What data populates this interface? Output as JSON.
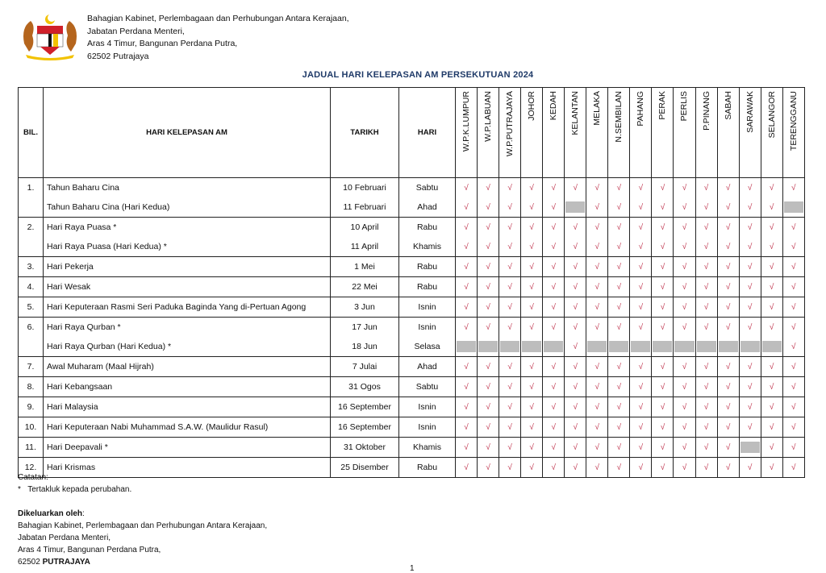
{
  "header": {
    "address": [
      "Bahagian Kabinet, Perlembagaan dan Perhubungan Antara Kerajaan,",
      "Jabatan Perdana Menteri,",
      "Aras 4 Timur, Bangunan Perdana Putra,",
      "62502 Putrajaya"
    ]
  },
  "title": "JADUAL HARI KELEPASAN AM PERSEKUTUAN 2024",
  "columns": {
    "bil": "BIL.",
    "name": "HARI KELEPASAN AM",
    "date": "TARIKH",
    "day": "HARI",
    "states": [
      "W.P.K.LUMPUR",
      "W.P.LABUAN",
      "W.P.PUTRAJAYA",
      "JOHOR",
      "KEDAH",
      "KELANTAN",
      "MELAKA",
      "N.SEMBILAN",
      "PAHANG",
      "PERAK",
      "PERLIS",
      "P.PINANG",
      "SABAH",
      "SARAWAK",
      "SELANGOR",
      "TERENGGANU"
    ]
  },
  "check_mark": "√",
  "colors": {
    "check": "#c0364f",
    "not_holiday": "#bdbdbd",
    "title": "#1f3a68"
  },
  "groups": [
    {
      "bil": "1.",
      "rows": [
        {
          "name": "Tahun Baharu Cina",
          "date": "10 Februari",
          "day": "Sabtu",
          "not_holiday": []
        },
        {
          "name": "Tahun Baharu Cina (Hari Kedua)",
          "date": "11 Februari",
          "day": "Ahad",
          "not_holiday": [
            "KELANTAN",
            "TERENGGANU"
          ]
        }
      ]
    },
    {
      "bil": "2.",
      "rows": [
        {
          "name": "Hari Raya Puasa *",
          "date": "10 April",
          "day": "Rabu",
          "not_holiday": []
        },
        {
          "name": "Hari Raya Puasa (Hari Kedua) *",
          "date": "11 April",
          "day": "Khamis",
          "not_holiday": []
        }
      ]
    },
    {
      "bil": "3.",
      "rows": [
        {
          "name": "Hari Pekerja",
          "date": "1 Mei",
          "day": "Rabu",
          "not_holiday": []
        }
      ]
    },
    {
      "bil": "4.",
      "rows": [
        {
          "name": "Hari Wesak",
          "date": "22 Mei",
          "day": "Rabu",
          "not_holiday": []
        }
      ]
    },
    {
      "bil": "5.",
      "rows": [
        {
          "name": "Hari Keputeraan Rasmi Seri Paduka Baginda Yang di-Pertuan Agong",
          "date": "3 Jun",
          "day": "Isnin",
          "not_holiday": []
        }
      ]
    },
    {
      "bil": "6.",
      "rows": [
        {
          "name": "Hari Raya Qurban *",
          "date": "17 Jun",
          "day": "Isnin",
          "not_holiday": []
        },
        {
          "name": "Hari Raya Qurban (Hari Kedua) *",
          "date": "18 Jun",
          "day": "Selasa",
          "not_holiday": [
            "W.P.K.LUMPUR",
            "W.P.LABUAN",
            "W.P.PUTRAJAYA",
            "JOHOR",
            "KEDAH",
            "MELAKA",
            "N.SEMBILAN",
            "PAHANG",
            "PERAK",
            "PERLIS",
            "P.PINANG",
            "SABAH",
            "SARAWAK",
            "SELANGOR"
          ]
        }
      ]
    },
    {
      "bil": "7.",
      "rows": [
        {
          "name": "Awal Muharam (Maal Hijrah)",
          "date": "7 Julai",
          "day": "Ahad",
          "not_holiday": []
        }
      ]
    },
    {
      "bil": "8.",
      "rows": [
        {
          "name": "Hari Kebangsaan",
          "date": "31 Ogos",
          "day": "Sabtu",
          "not_holiday": []
        }
      ]
    },
    {
      "bil": "9.",
      "rows": [
        {
          "name": "Hari Malaysia",
          "date": "16 September",
          "day": "Isnin",
          "not_holiday": []
        }
      ]
    },
    {
      "bil": "10.",
      "rows": [
        {
          "name": "Hari Keputeraan Nabi Muhammad S.A.W. (Maulidur Rasul)",
          "date": "16 September",
          "day": "Isnin",
          "not_holiday": []
        }
      ]
    },
    {
      "bil": "11.",
      "rows": [
        {
          "name": "Hari Deepavali *",
          "date": "31 Oktober",
          "day": "Khamis",
          "not_holiday": [
            "SARAWAK"
          ]
        }
      ]
    },
    {
      "bil": "12.",
      "rows": [
        {
          "name": "Hari Krismas",
          "date": "25 Disember",
          "day": "Rabu",
          "not_holiday": []
        }
      ]
    }
  ],
  "notes": {
    "label": "Catatan:",
    "star": "*",
    "text": "Tertakluk kepada perubahan."
  },
  "issued": {
    "label": "Dikeluarkan oleh",
    "colon": ":",
    "lines": [
      "Bahagian Kabinet, Perlembagaan dan Perhubungan Antara Kerajaan,",
      "Jabatan Perdana Menteri,",
      "Aras 4 Timur, Bangunan Perdana Putra,"
    ],
    "postcode": "62502",
    "city": "PUTRAJAYA"
  },
  "page_number": "1"
}
